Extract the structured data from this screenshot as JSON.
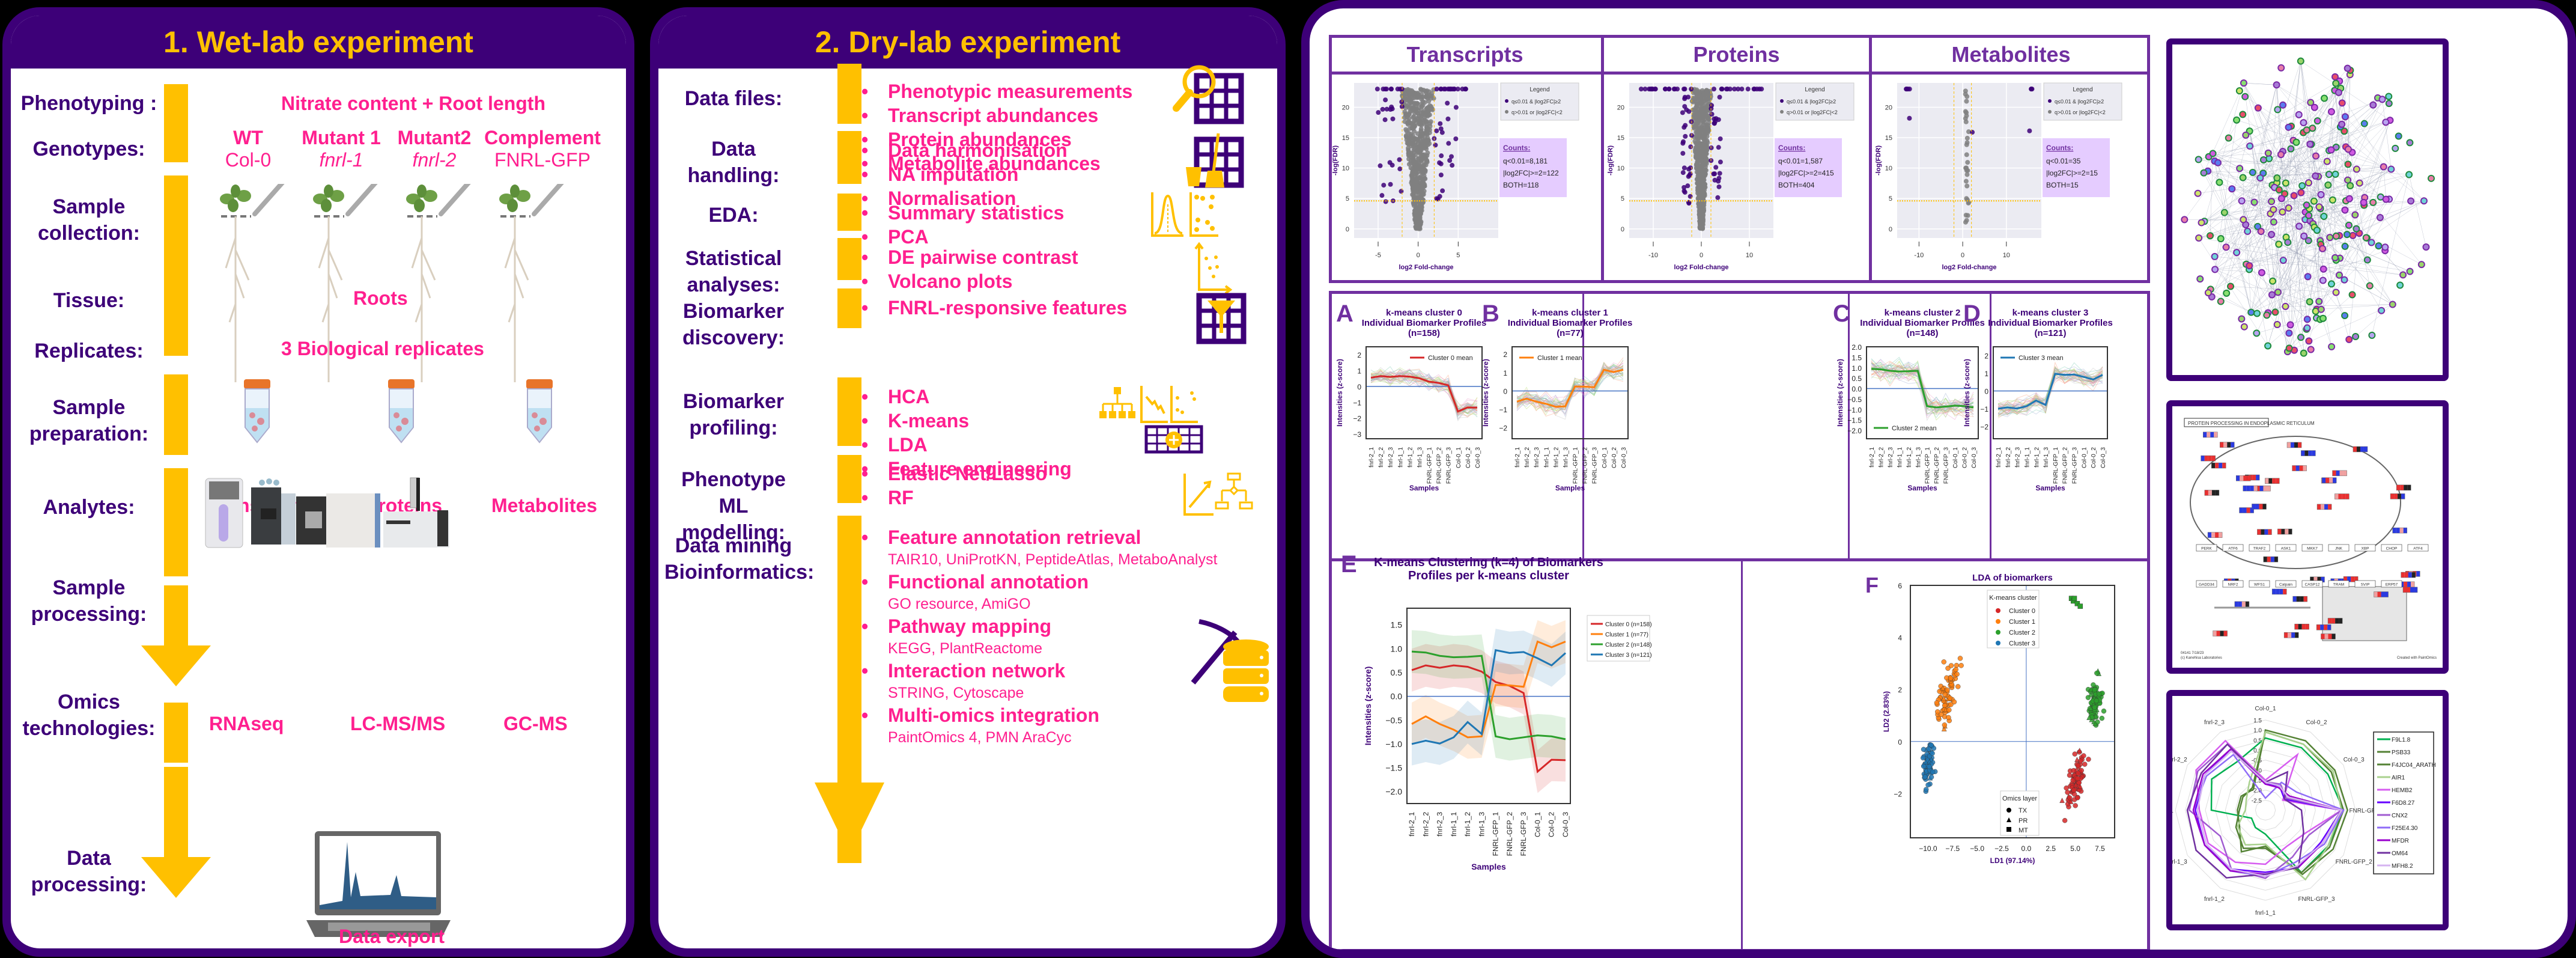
{
  "wetlab": {
    "title": "1. Wet-lab experiment",
    "rows": {
      "phenotyping": "Phenotyping :",
      "genotypes": "Genotypes:",
      "sample_collection": "Sample collection:",
      "tissue": "Tissue:",
      "replicates": "Replicates:",
      "sample_preparation": "Sample preparation:",
      "analytes": "Analytes:",
      "sample_processing": "Sample processing:",
      "omics_technologies": "Omics technologies:",
      "data_processing": "Data processing:"
    },
    "phenotyping_value": "Nitrate content + Root length",
    "genotypes": [
      {
        "name": "WT",
        "line": "Col-0",
        "italic": false
      },
      {
        "name": "Mutant 1",
        "line": "fnrl-1",
        "italic": true
      },
      {
        "name": "Mutant2",
        "line": "fnrl-2",
        "italic": true
      },
      {
        "name": "Complement",
        "line": "FNRL-GFP",
        "italic": false
      }
    ],
    "tissue_value": "Roots",
    "replicates_value": "3 Biological replicates",
    "analytes": [
      "Transcripts",
      "Proteins",
      "Metabolites"
    ],
    "technologies": [
      "RNAseq",
      "LC-MS/MS",
      "GC-MS"
    ],
    "data_export": "Data export"
  },
  "drylab": {
    "title": "2. Dry-lab experiment",
    "sections": [
      {
        "label": "Data files:",
        "items": [
          {
            "t": "Phenotypic measurements"
          },
          {
            "t": "Transcript abundances"
          },
          {
            "t": "Protein abundances"
          },
          {
            "t": "Metabolite abundances"
          }
        ]
      },
      {
        "label": "Data handling:",
        "items": [
          {
            "t": "Data harmonisation"
          },
          {
            "t": "NA imputation"
          },
          {
            "t": "Normalisation"
          }
        ]
      },
      {
        "label": "EDA:",
        "items": [
          {
            "t": "Summary statistics"
          },
          {
            "t": "PCA"
          }
        ]
      },
      {
        "label": "Statistical analyses:",
        "items": [
          {
            "t": "DE pairwise contrast"
          },
          {
            "t": "Volcano plots"
          }
        ]
      },
      {
        "label": "Biomarker discovery:",
        "items": [
          {
            "t": "FNRL-responsive features"
          }
        ]
      },
      {
        "label": "Biomarker profiling:",
        "items": [
          {
            "t": "HCA"
          },
          {
            "t": "K-means"
          },
          {
            "t": "LDA"
          },
          {
            "t": "Feature engineering"
          }
        ]
      },
      {
        "label": "Phenotype ML modelling:",
        "items": [
          {
            "t": "Elastic Net/Lasso"
          },
          {
            "t": "RF"
          }
        ]
      },
      {
        "label": "Data mining Bioinformatics:",
        "items": [
          {
            "t": "Feature annotation retrieval",
            "s": "TAIR10, UniProtKN, PeptideAtlas, MetaboAnalyst"
          },
          {
            "t": "Functional annotation",
            "s": "GO resource, AmiGO"
          },
          {
            "t": "Pathway mapping",
            "s": "KEGG, PlantReactome"
          },
          {
            "t": "Interaction network",
            "s": "STRING, Cytoscape"
          },
          {
            "t": "Multi-omics integration",
            "s": "PaintOmics 4, PMN AraCyc"
          }
        ]
      }
    ]
  },
  "volcano": {
    "legend_title": "Legend",
    "legend_sig": "q≤0.01 & |log2FC|≥2",
    "legend_ns": "q>0.01 or |log2FC|<2",
    "xlabel": "log2 Fold-change",
    "ylabel": "-log(FDR)",
    "counts_title": "Counts:",
    "panels": [
      {
        "title": "Transcripts",
        "q": "q<0.01=8,181",
        "fc": "|log2FC|>=2=122",
        "both": "BOTH=118",
        "xticks": [
          "-5",
          "0",
          "5"
        ]
      },
      {
        "title": "Proteins",
        "q": "q<0.01=1,587",
        "fc": "|log2FC|>=2=415",
        "both": "BOTH=404",
        "xticks": [
          "-10",
          "0",
          "10"
        ]
      },
      {
        "title": "Metabolites",
        "q": "q<0.01=35",
        "fc": "|log2FC|>=2=15",
        "both": "BOTH=15",
        "xticks": [
          "-10",
          "0",
          "10"
        ]
      }
    ],
    "yticks": [
      "0",
      "5",
      "10",
      "15",
      "20"
    ]
  },
  "samples": [
    "fnrl-2_1",
    "fnrl-2_2",
    "fnrl-2_3",
    "fnrl-1_1",
    "fnrl-1_2",
    "fnrl-1_3",
    "FNRL-GFP_1",
    "FNRL-GFP_2",
    "FNRL-GFP_3",
    "Col-0_1",
    "Col-0_2",
    "Col-0_3"
  ],
  "chart_data": [
    {
      "type": "line",
      "id": "A",
      "title": "k-means cluster 0 Individual Biomarker Profiles (n=158)",
      "xlabel": "Samples",
      "ylabel": "Intensities (z-score)",
      "legend": "Cluster 0 mean",
      "color": "#d62728",
      "yticks": [
        "2",
        "1",
        "0",
        "−1",
        "−2",
        "−3"
      ],
      "ylim": [
        -3.3,
        2.5
      ],
      "categories": [
        "fnrl-2_1",
        "fnrl-2_2",
        "fnrl-2_3",
        "fnrl-1_1",
        "fnrl-1_2",
        "fnrl-1_3",
        "FNRL-GFP_1",
        "FNRL-GFP_2",
        "FNRL-GFP_3",
        "Col-0_1",
        "Col-0_2",
        "Col-0_3"
      ],
      "values": [
        0.55,
        0.65,
        0.6,
        0.65,
        0.62,
        0.52,
        0.3,
        0.22,
        0.07,
        -1.58,
        -1.33,
        -1.34
      ]
    },
    {
      "type": "line",
      "id": "B",
      "title": "k-means cluster 1 Individual Biomarker Profiles (n=77)",
      "xlabel": "Samples",
      "ylabel": "Intensities (z-score)",
      "legend": "Cluster 1 mean",
      "color": "#ff7f0e",
      "yticks": [
        "2",
        "1",
        "0",
        "−1",
        "−2"
      ],
      "ylim": [
        -2.6,
        2.4
      ],
      "categories": [
        "fnrl-2_1",
        "fnrl-2_2",
        "fnrl-2_3",
        "fnrl-1_1",
        "fnrl-1_2",
        "fnrl-1_3",
        "FNRL-GFP_1",
        "FNRL-GFP_2",
        "FNRL-GFP_3",
        "Col-0_1",
        "Col-0_2",
        "Col-0_3"
      ],
      "values": [
        -0.58,
        -0.42,
        -0.58,
        -0.7,
        -0.86,
        -0.84,
        0.24,
        0.23,
        0.2,
        1.15,
        1.03,
        1.15
      ]
    },
    {
      "type": "line",
      "id": "C",
      "title": "k-means cluster 2 Individual Biomarker Profiles (n=148)",
      "xlabel": "Samples",
      "ylabel": "Intensities (z-score)",
      "legend": "Cluster 2 mean",
      "color": "#2ca02c",
      "yticks": [
        "2.0",
        "1.5",
        "1.0",
        "0.5",
        "0.0",
        "−0.5",
        "−1.0",
        "−1.5",
        "−2.0"
      ],
      "ylim": [
        -2.4,
        2.0
      ],
      "categories": [
        "fnrl-2_1",
        "fnrl-2_2",
        "fnrl-2_3",
        "fnrl-1_1",
        "fnrl-1_2",
        "fnrl-1_3",
        "FNRL-GFP_1",
        "FNRL-GFP_2",
        "FNRL-GFP_3",
        "Col-0_1",
        "Col-0_2",
        "Col-0_3"
      ],
      "values": [
        0.94,
        0.92,
        0.85,
        0.82,
        0.83,
        0.85,
        -0.84,
        -0.9,
        -0.86,
        -0.82,
        -0.84,
        -0.9
      ]
    },
    {
      "type": "line",
      "id": "D",
      "title": "k-means cluster 3 Individual Biomarker Profiles (n=121)",
      "xlabel": "Samples",
      "ylabel": "Intensities (z-score)",
      "legend": "Cluster 3 mean",
      "color": "#1f77b4",
      "yticks": [
        "2",
        "1",
        "0",
        "−1",
        "−2"
      ],
      "ylim": [
        -2.7,
        2.5
      ],
      "categories": [
        "fnrl-2_1",
        "fnrl-2_2",
        "fnrl-2_3",
        "fnrl-1_1",
        "fnrl-1_2",
        "fnrl-1_3",
        "FNRL-GFP_1",
        "FNRL-GFP_2",
        "FNRL-GFP_3",
        "Col-0_1",
        "Col-0_2",
        "Col-0_3"
      ],
      "values": [
        -1.0,
        -0.93,
        -0.99,
        -0.86,
        -0.54,
        -0.79,
        0.97,
        0.91,
        0.93,
        0.8,
        0.65,
        0.91
      ]
    },
    {
      "type": "line",
      "id": "E",
      "title": "K-means Clustering (k=4) of Biomarkers Profiles per k-means cluster",
      "xlabel": "Samples",
      "ylabel": "Intensities (z-score)",
      "yticks": [
        "1.5",
        "1.0",
        "0.5",
        "0.0",
        "−0.5",
        "−1.0",
        "−1.5",
        "−2.0"
      ],
      "ylim": [
        -2.25,
        1.85
      ],
      "legend_position": "right",
      "categories": [
        "fnrl-2_1",
        "fnrl-2_2",
        "fnrl-2_3",
        "fnrl-1_1",
        "fnrl-1_2",
        "fnrl-1_3",
        "FNRL-GFP_1",
        "FNRL-GFP_2",
        "FNRL-GFP_3",
        "Col-0_1",
        "Col-0_2",
        "Col-0_3"
      ],
      "series": [
        {
          "name": "Cluster 0 (n=158)",
          "color": "#d62728",
          "values": [
            0.55,
            0.65,
            0.6,
            0.65,
            0.62,
            0.52,
            0.3,
            0.22,
            0.07,
            -1.58,
            -1.33,
            -1.34
          ]
        },
        {
          "name": "Cluster 1 (n=77)",
          "color": "#ff7f0e",
          "values": [
            -0.58,
            -0.42,
            -0.58,
            -0.7,
            -0.86,
            -0.84,
            0.24,
            0.23,
            0.2,
            1.15,
            1.03,
            1.15
          ]
        },
        {
          "name": "Cluster 2 (n=148)",
          "color": "#2ca02c",
          "values": [
            0.94,
            0.92,
            0.85,
            0.82,
            0.83,
            0.85,
            -0.84,
            -0.9,
            -0.86,
            -0.82,
            -0.84,
            -0.9
          ]
        },
        {
          "name": "Cluster 3 (n=121)",
          "color": "#1f77b4",
          "values": [
            -1.0,
            -0.93,
            -0.99,
            -0.86,
            -0.54,
            -0.79,
            0.97,
            0.91,
            0.93,
            0.8,
            0.65,
            0.91
          ]
        }
      ]
    },
    {
      "type": "scatter",
      "id": "F",
      "title": "LDA of biomarkers",
      "xlabel": "LD1 (97.14%)",
      "ylabel": "LD2 (2.83%)",
      "xlim": [
        -11.8,
        9.0
      ],
      "ylim": [
        -3.7,
        6.0
      ],
      "xticks": [
        "−10.0",
        "−7.5",
        "−5.0",
        "−2.5",
        "0.0",
        "2.5",
        "5.0",
        "7.5"
      ],
      "yticks": [
        "6",
        "4",
        "2",
        "0",
        "−2"
      ],
      "legend_cluster_title": "K-means cluster",
      "legend_layer_title": "Omics layer",
      "layers": [
        "TX",
        "PR",
        "MT"
      ],
      "series": [
        {
          "name": "Cluster 0",
          "color": "#d62728",
          "centroid": [
            5.0,
            -1.6
          ],
          "spread": [
            1.3,
            1.0
          ]
        },
        {
          "name": "Cluster 1",
          "color": "#ff7f0e",
          "centroid": [
            -8.0,
            1.9
          ],
          "spread": [
            1.3,
            1.1
          ]
        },
        {
          "name": "Cluster 2",
          "color": "#2ca02c",
          "centroid": [
            7.0,
            1.4
          ],
          "spread": [
            0.9,
            1.0
          ]
        },
        {
          "name": "Cluster 3",
          "color": "#1f77b4",
          "centroid": [
            -10.0,
            -0.9
          ],
          "spread": [
            0.7,
            0.9
          ]
        }
      ]
    },
    {
      "type": "radar",
      "id": "radar",
      "axes": [
        "Col-0_1",
        "Col-0_2",
        "Col-0_3",
        "FNRL-GFP_1",
        "FNRL-GFP_2",
        "FNRL-GFP_3",
        "fnrl-1_1",
        "fnrl-1_2",
        "fnrl-1_3",
        "fnrl-2_1",
        "fnrl-2_2",
        "fnrl-2_3"
      ],
      "rticks": [
        "1.5",
        "1.0",
        "0.5",
        "0.0",
        "-0.5",
        "-1.0",
        "-1.5",
        "-2.0",
        "-2.5"
      ],
      "rlim": [
        -3.0,
        1.5
      ],
      "series": [
        {
          "name": "F9L1.8",
          "color": "#00b050",
          "values": [
            0.6,
            0.6,
            0.6,
            0.9,
            0.6,
            0.6,
            -1.8,
            -2.0,
            -2.2,
            -0.3,
            0.1,
            -0.2
          ]
        },
        {
          "name": "PSB33",
          "color": "#548235",
          "values": [
            1.0,
            1.0,
            1.0,
            1.1,
            0.9,
            0.7,
            -1.2,
            -0.6,
            -1.5,
            -1.6,
            -1.6,
            -1.8
          ]
        },
        {
          "name": "F4JC04_ARATH",
          "color": "#548235",
          "values": [
            0.9,
            0.8,
            0.8,
            0.9,
            0.7,
            0.6,
            -1.1,
            -0.8,
            -1.3,
            -1.7,
            -1.7,
            -1.7
          ]
        },
        {
          "name": "AIR1",
          "color": "#a9d18e",
          "values": [
            0.9,
            0.8,
            0.9,
            0.8,
            0.6,
            1.0,
            -1.3,
            -1.0,
            -1.4,
            -2.0,
            -1.9,
            -1.4
          ]
        },
        {
          "name": "HEMB2",
          "color": "#d65cf0",
          "values": [
            -1.5,
            0.2,
            -2.0,
            0.8,
            -0.7,
            -0.9,
            -0.3,
            0.0,
            0.3,
            0.3,
            1.0,
            1.0
          ]
        },
        {
          "name": "F6D8.27",
          "color": "#6600ff",
          "values": [
            -1.7,
            -1.6,
            -1.9,
            0.8,
            0.2,
            0.3,
            0.1,
            0.4,
            0.5,
            0.5,
            0.5,
            0.5
          ]
        },
        {
          "name": "CNX2",
          "color": "#a05cd0",
          "values": [
            -1.6,
            -1.5,
            -1.8,
            0.8,
            -0.5,
            -0.3,
            0.4,
            0.4,
            -0.4,
            0.8,
            0.9,
            0.8
          ]
        },
        {
          "name": "F25E4.30",
          "color": "#8f6cf7",
          "values": [
            -2.4,
            -1.4,
            -1.2,
            0.9,
            0.4,
            0.0,
            0.3,
            0.5,
            0.5,
            0.6,
            0.4,
            0.2
          ]
        },
        {
          "name": "MFDR",
          "color": "#9900cc",
          "values": [
            -1.7,
            -1.7,
            -1.6,
            0.8,
            0.3,
            0.3,
            0.2,
            0.5,
            0.5,
            0.6,
            0.6,
            0.5
          ]
        },
        {
          "name": "OM64",
          "color": "#7030a0",
          "values": [
            -1.6,
            -0.8,
            -1.9,
            -1.2,
            -0.8,
            0.3,
            0.2,
            0.9,
            1.0,
            0.9,
            0.7,
            0.8
          ]
        },
        {
          "name": "MFH8.2",
          "color": "#d5b3f0",
          "values": [
            -1.6,
            -1.6,
            -1.7,
            0.8,
            0.3,
            0.2,
            0.3,
            0.4,
            0.4,
            0.4,
            0.5,
            0.4
          ]
        }
      ]
    }
  ],
  "kegg": {
    "title": "PROTEIN PROCESSING IN ENDOPLASMIC RETICULUM",
    "footer_left": "04141 7/18/23\n(c) Kanehisa Laboratories",
    "footer_right": "Created with PaintOmics",
    "nodes": [
      "Protein export",
      "Translocon",
      "SRP",
      "SR",
      "Ribosome",
      "BiP",
      "ERP57",
      "Correctly folded",
      "COPII",
      "Golgi body",
      "VIP36",
      "ERGIC53",
      "ERGL",
      "Lectin associated",
      "G1M9",
      "N-glycosylation",
      "N-glycan biosynthesis",
      "Re-glucosylation",
      "De-glucosylation",
      "Folding intermediate",
      "Protein recognition by luminal chaperones",
      "Endoplasmic reticulum (ER)",
      "Accumulation of misfolded proteins",
      "Misfolded",
      "Terminally misfolded",
      "Protein targeting",
      "XTP3B",
      "TRAM",
      "ER-associated degradation (ERAD)",
      "Ubiquitin ligase complex",
      "SVIP",
      "Proteasome",
      "Transport complex",
      "dislocon channel",
      "Unfolded protein responce (UPR)",
      "ER stress",
      "Release of Bip",
      "PERK",
      "ATF6",
      "IRE1",
      "Bak/Bax",
      "Bcl2",
      "Calpain",
      "CASP12",
      "TRAF2",
      "ASK1",
      "MKK7",
      "JNK",
      "Apoptosis",
      "XBP",
      "NRF2",
      "GADD34",
      "WFS1",
      "p50 ATF6",
      "ATF4",
      "CHOP",
      "Nucleus",
      "AARE",
      "ERSE",
      "UPRE",
      "Prion diseases",
      "Alzheimer's disease",
      "Parkinson's disease",
      "Type II diabetes mellitus",
      "Attenuating protein synthesis",
      "Amino acid metabolism Redox/ detoxification",
      "ER chaperons protein folding enzymes",
      "ERAD factors",
      "Recovery of ER stress"
    ]
  },
  "network": {
    "label": "Interaction network"
  }
}
